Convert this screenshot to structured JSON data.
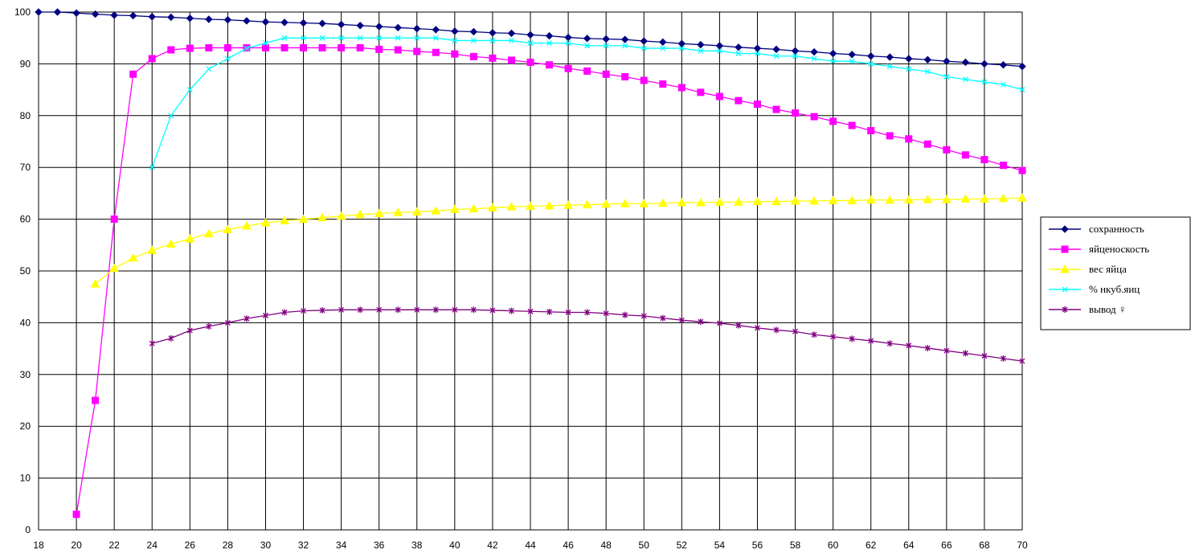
{
  "chart_data": {
    "type": "line",
    "title": "",
    "xlabel": "",
    "ylabel": "",
    "xlim": [
      18,
      70
    ],
    "ylim": [
      0,
      100
    ],
    "x_ticks": [
      18,
      20,
      22,
      24,
      26,
      28,
      30,
      32,
      34,
      36,
      38,
      40,
      42,
      44,
      46,
      48,
      50,
      52,
      54,
      56,
      58,
      60,
      62,
      64,
      66,
      68,
      70
    ],
    "y_ticks": [
      0,
      10,
      20,
      30,
      40,
      50,
      60,
      70,
      80,
      90,
      100
    ],
    "grid": true,
    "legend_position": "right",
    "series": [
      {
        "name": "сохранность",
        "color": "#000080",
        "marker": "diamond",
        "x": [
          18,
          19,
          20,
          21,
          22,
          23,
          24,
          25,
          26,
          27,
          28,
          29,
          30,
          31,
          32,
          33,
          34,
          35,
          36,
          37,
          38,
          39,
          40,
          41,
          42,
          43,
          44,
          45,
          46,
          47,
          48,
          49,
          50,
          51,
          52,
          53,
          54,
          55,
          56,
          57,
          58,
          59,
          60,
          61,
          62,
          63,
          64,
          65,
          66,
          67,
          68,
          69,
          70
        ],
        "y": [
          100,
          100,
          99.8,
          99.6,
          99.4,
          99.3,
          99.1,
          99.0,
          98.8,
          98.6,
          98.5,
          98.3,
          98.1,
          98.0,
          97.9,
          97.8,
          97.6,
          97.4,
          97.2,
          97.0,
          96.8,
          96.6,
          96.3,
          96.2,
          96.0,
          95.9,
          95.6,
          95.4,
          95.1,
          94.9,
          94.8,
          94.7,
          94.4,
          94.2,
          93.9,
          93.7,
          93.5,
          93.2,
          93.0,
          92.8,
          92.5,
          92.3,
          92.0,
          91.8,
          91.5,
          91.3,
          91.0,
          90.8,
          90.5,
          90.3,
          90.0,
          89.8,
          89.5
        ]
      },
      {
        "name": "яйценоскость",
        "color": "#ff00ff",
        "marker": "square",
        "x": [
          20,
          21,
          22,
          23,
          24,
          25,
          26,
          27,
          28,
          29,
          30,
          31,
          32,
          33,
          34,
          35,
          36,
          37,
          38,
          39,
          40,
          41,
          42,
          43,
          44,
          45,
          46,
          47,
          48,
          49,
          50,
          51,
          52,
          53,
          54,
          55,
          56,
          57,
          58,
          59,
          60,
          61,
          62,
          63,
          64,
          65,
          66,
          67,
          68,
          69,
          70
        ],
        "y": [
          3,
          25,
          60,
          88,
          91,
          92.7,
          93,
          93.1,
          93.1,
          93.1,
          93.1,
          93.1,
          93.1,
          93.1,
          93.1,
          93.1,
          92.8,
          92.7,
          92.4,
          92.2,
          91.9,
          91.4,
          91.1,
          90.7,
          90.3,
          89.8,
          89.1,
          88.6,
          88.0,
          87.5,
          86.8,
          86.1,
          85.4,
          84.5,
          83.7,
          82.9,
          82.2,
          81.2,
          80.5,
          79.8,
          78.9,
          78.1,
          77.1,
          76.1,
          75.5,
          74.5,
          73.4,
          72.4,
          71.5,
          70.4,
          69.4
        ]
      },
      {
        "name": "вес яйца",
        "color": "#ffff00",
        "marker": "triangle",
        "x": [
          21,
          22,
          23,
          24,
          25,
          26,
          27,
          28,
          29,
          30,
          31,
          32,
          33,
          34,
          35,
          36,
          37,
          38,
          39,
          40,
          41,
          42,
          43,
          44,
          45,
          46,
          47,
          48,
          49,
          50,
          51,
          52,
          53,
          54,
          55,
          56,
          57,
          58,
          59,
          60,
          61,
          62,
          63,
          64,
          65,
          66,
          67,
          68,
          69,
          70
        ],
        "y": [
          47.5,
          50.5,
          52.5,
          54,
          55.2,
          56.2,
          57.2,
          58,
          58.7,
          59.3,
          59.7,
          60,
          60.3,
          60.6,
          60.9,
          61.1,
          61.3,
          61.4,
          61.6,
          61.9,
          62,
          62.2,
          62.4,
          62.5,
          62.6,
          62.7,
          62.8,
          62.9,
          63,
          63,
          63.1,
          63.2,
          63.2,
          63.3,
          63.3,
          63.4,
          63.4,
          63.5,
          63.5,
          63.6,
          63.6,
          63.7,
          63.7,
          63.7,
          63.8,
          63.8,
          63.9,
          63.9,
          64,
          64.1
        ]
      },
      {
        "name": "% нкуб.яиц",
        "color": "#00ffff",
        "marker": "x",
        "x": [
          24,
          25,
          26,
          27,
          28,
          29,
          30,
          31,
          32,
          33,
          34,
          35,
          36,
          37,
          38,
          39,
          40,
          41,
          42,
          43,
          44,
          45,
          46,
          47,
          48,
          49,
          50,
          51,
          52,
          53,
          54,
          55,
          56,
          57,
          58,
          59,
          60,
          61,
          62,
          63,
          64,
          65,
          66,
          67,
          68,
          69,
          70
        ],
        "y": [
          70,
          80,
          85,
          89,
          91,
          93,
          94,
          95,
          95,
          95,
          95,
          95,
          95,
          95,
          95,
          95,
          94.5,
          94.5,
          94.5,
          94.5,
          94,
          94,
          94,
          93.5,
          93.5,
          93.5,
          93,
          93,
          93,
          92.5,
          92.5,
          92,
          92,
          91.5,
          91.5,
          91,
          90.5,
          90.5,
          90,
          89.5,
          89,
          88.5,
          87.5,
          87,
          86.5,
          86,
          85
        ]
      },
      {
        "name": "вывод ♀",
        "color": "#800080",
        "marker": "star",
        "x": [
          24,
          25,
          26,
          27,
          28,
          29,
          30,
          31,
          32,
          33,
          34,
          35,
          36,
          37,
          38,
          39,
          40,
          41,
          42,
          43,
          44,
          45,
          46,
          47,
          48,
          49,
          50,
          51,
          52,
          53,
          54,
          55,
          56,
          57,
          58,
          59,
          60,
          61,
          62,
          63,
          64,
          65,
          66,
          67,
          68,
          69,
          70
        ],
        "y": [
          36,
          37,
          38.5,
          39.3,
          40,
          40.8,
          41.4,
          42,
          42.3,
          42.4,
          42.5,
          42.5,
          42.5,
          42.5,
          42.5,
          42.5,
          42.5,
          42.5,
          42.4,
          42.3,
          42.2,
          42.1,
          42,
          42,
          41.8,
          41.5,
          41.3,
          40.9,
          40.5,
          40.2,
          39.9,
          39.5,
          39,
          38.6,
          38.3,
          37.7,
          37.3,
          36.9,
          36.5,
          36.0,
          35.6,
          35.1,
          34.6,
          34.1,
          33.6,
          33.1,
          32.6
        ]
      }
    ]
  }
}
